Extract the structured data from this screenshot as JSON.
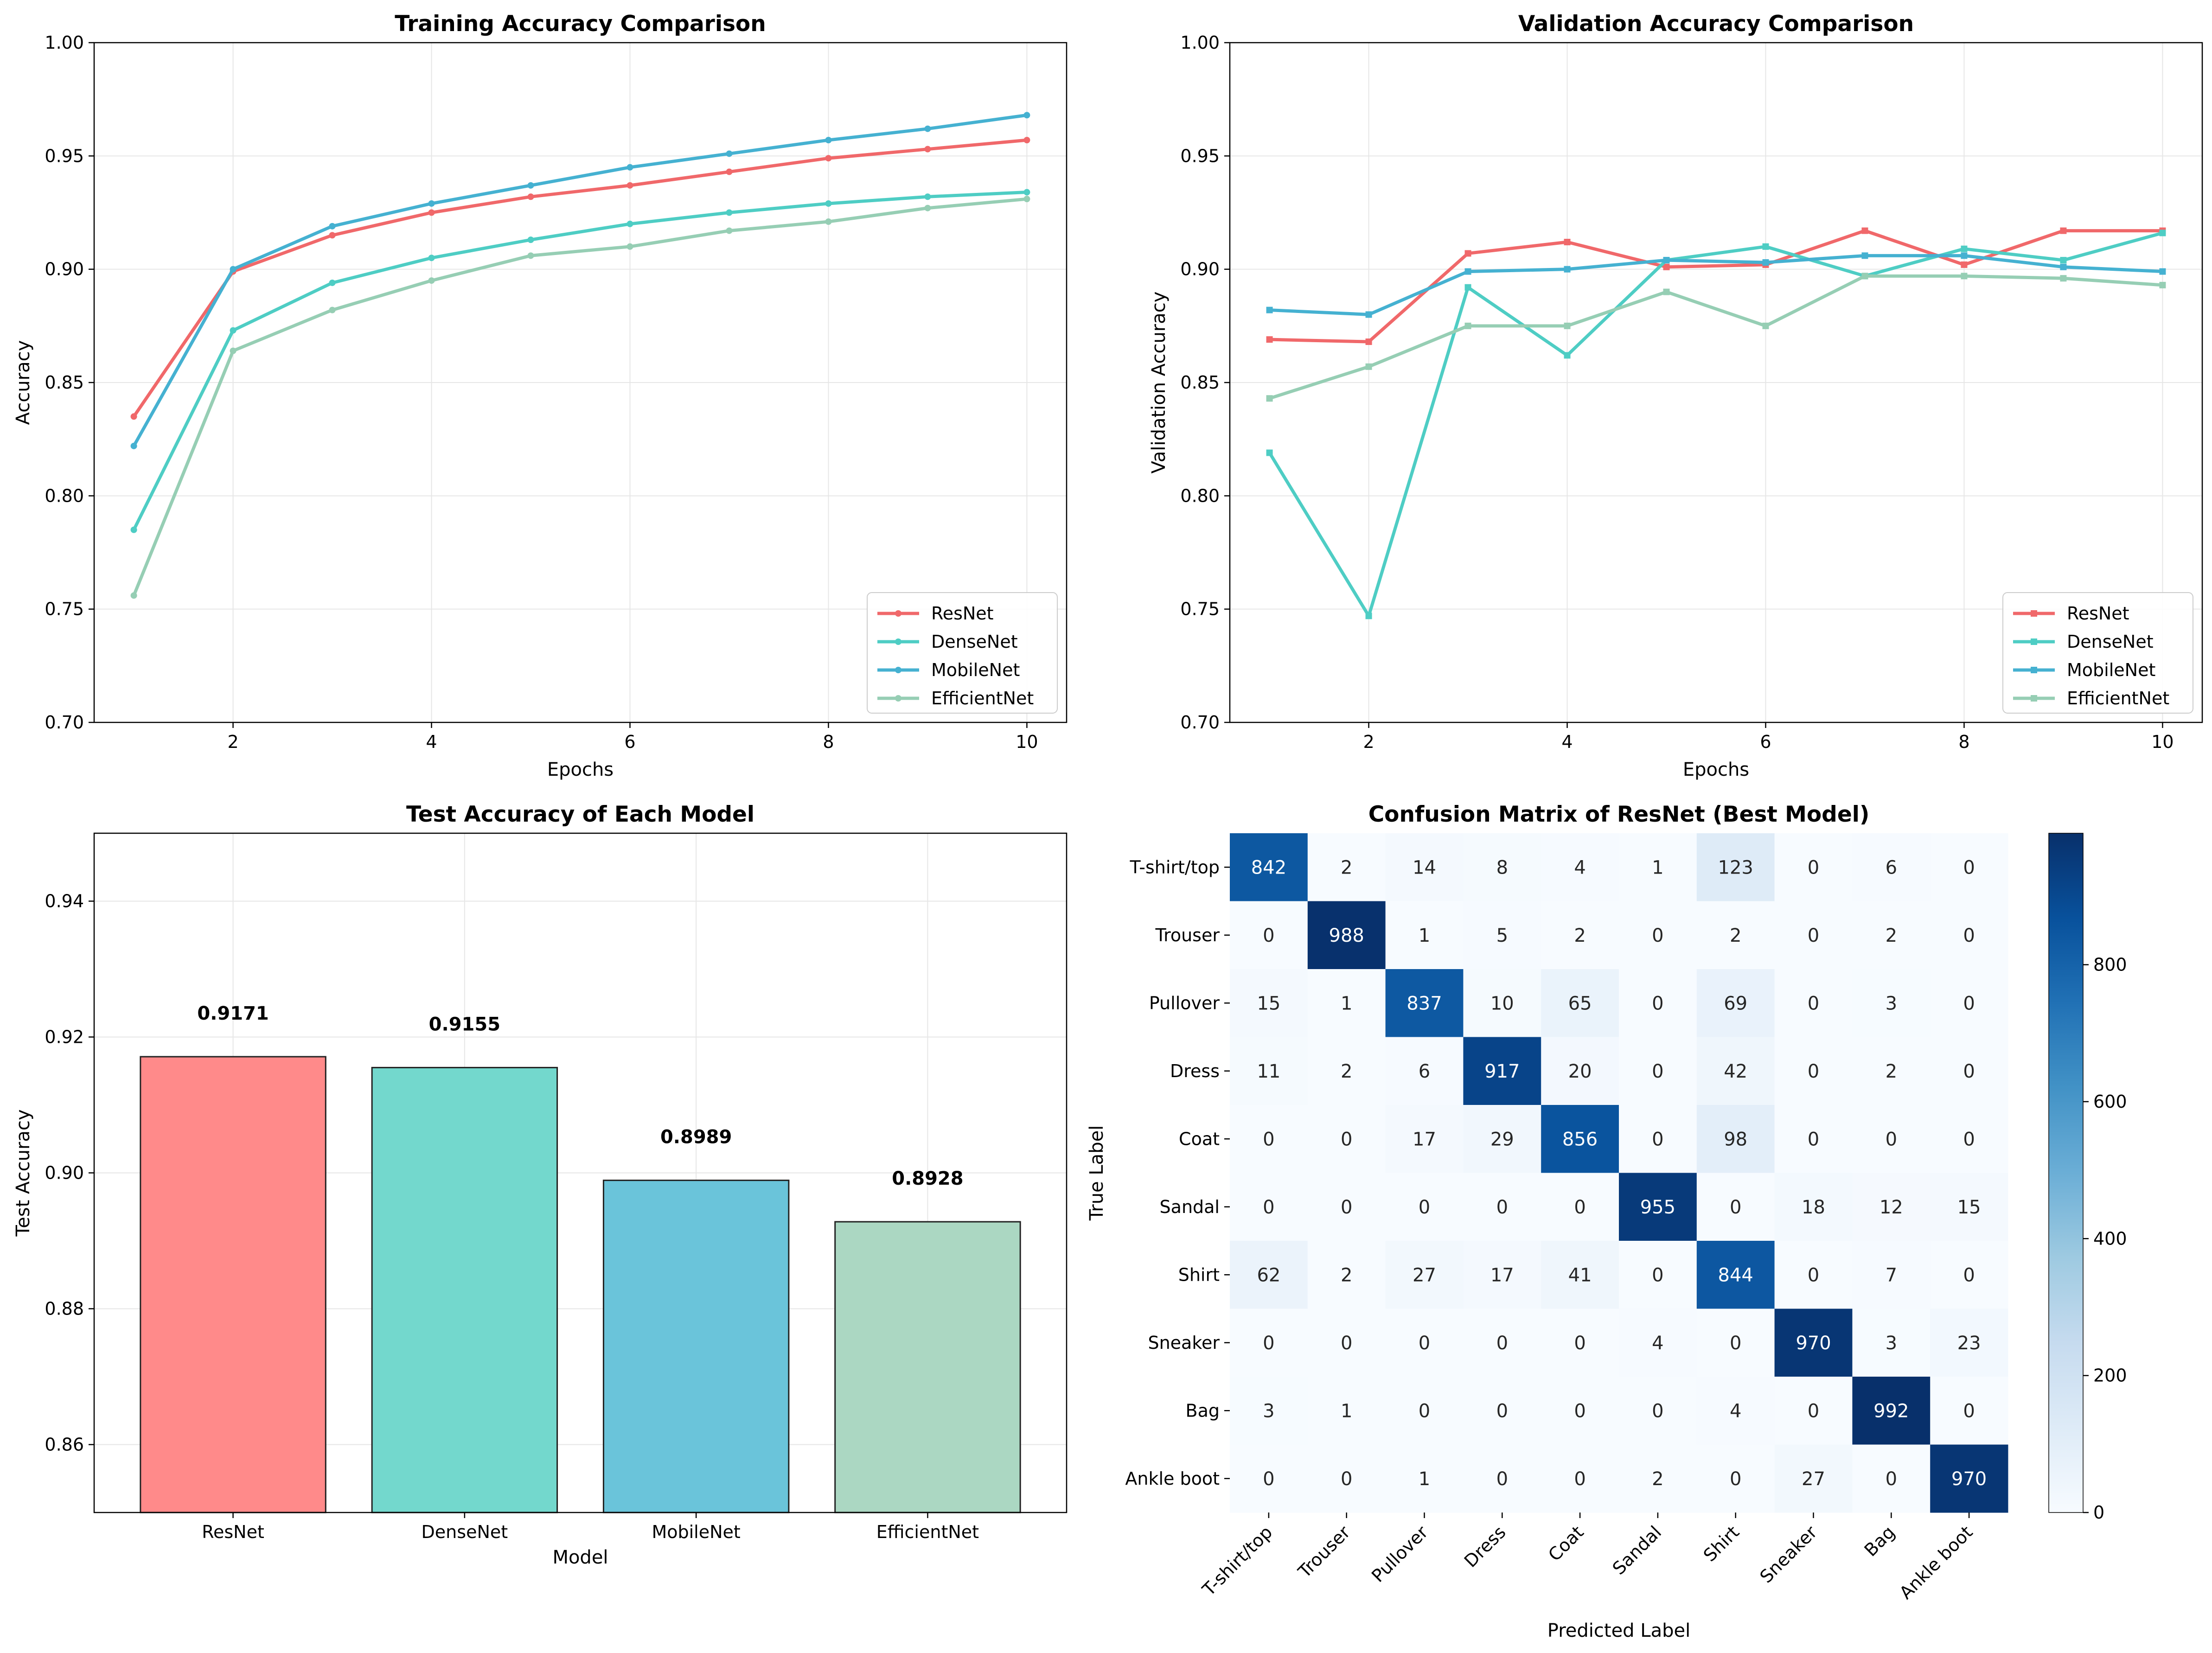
{
  "colors": {
    "ResNet": "#f0686a",
    "DenseNet": "#4ecdc4",
    "MobileNet": "#45b1d1",
    "EfficientNet": "#96ceb4",
    "bars": [
      "#ff8a8a",
      "#73d8cd",
      "#6ac4da",
      "#abd7c2"
    ],
    "grid": "#e6e6e6"
  },
  "chart_data": [
    {
      "id": "train",
      "type": "line",
      "title": "Training Accuracy Comparison",
      "xlabel": "Epochs",
      "ylabel": "Accuracy",
      "xlim": [
        0.6,
        10.4
      ],
      "ylim": [
        0.7,
        1.0
      ],
      "xticks": [
        2,
        4,
        6,
        8,
        10
      ],
      "yticks": [
        0.7,
        0.75,
        0.8,
        0.85,
        0.9,
        0.95,
        1.0
      ],
      "ytick_labels": [
        "0.70",
        "0.75",
        "0.80",
        "0.85",
        "0.90",
        "0.95",
        "1.00"
      ],
      "grid": true,
      "legend": "lower-right",
      "x": [
        1,
        2,
        3,
        4,
        5,
        6,
        7,
        8,
        9,
        10
      ],
      "series": [
        {
          "name": "ResNet",
          "values": [
            0.835,
            0.899,
            0.915,
            0.925,
            0.932,
            0.937,
            0.943,
            0.949,
            0.953,
            0.957
          ]
        },
        {
          "name": "DenseNet",
          "values": [
            0.785,
            0.873,
            0.894,
            0.905,
            0.913,
            0.92,
            0.925,
            0.929,
            0.932,
            0.934
          ]
        },
        {
          "name": "MobileNet",
          "values": [
            0.822,
            0.9,
            0.919,
            0.929,
            0.937,
            0.945,
            0.951,
            0.957,
            0.962,
            0.968
          ]
        },
        {
          "name": "EfficientNet",
          "values": [
            0.756,
            0.864,
            0.882,
            0.895,
            0.906,
            0.91,
            0.917,
            0.921,
            0.927,
            0.931
          ]
        }
      ]
    },
    {
      "id": "val",
      "type": "line",
      "title": "Validation Accuracy Comparison",
      "xlabel": "Epochs",
      "ylabel": "Validation Accuracy",
      "xlim": [
        0.6,
        10.4
      ],
      "ylim": [
        0.7,
        1.0
      ],
      "xticks": [
        2,
        4,
        6,
        8,
        10
      ],
      "yticks": [
        0.7,
        0.75,
        0.8,
        0.85,
        0.9,
        0.95,
        1.0
      ],
      "ytick_labels": [
        "0.70",
        "0.75",
        "0.80",
        "0.85",
        "0.90",
        "0.95",
        "1.00"
      ],
      "grid": true,
      "legend": "lower-right",
      "x": [
        1,
        2,
        3,
        4,
        5,
        6,
        7,
        8,
        9,
        10
      ],
      "series": [
        {
          "name": "ResNet",
          "values": [
            0.869,
            0.868,
            0.907,
            0.912,
            0.901,
            0.902,
            0.917,
            0.902,
            0.917,
            0.917
          ]
        },
        {
          "name": "DenseNet",
          "values": [
            0.819,
            0.747,
            0.892,
            0.862,
            0.904,
            0.91,
            0.897,
            0.909,
            0.904,
            0.916
          ]
        },
        {
          "name": "MobileNet",
          "values": [
            0.882,
            0.88,
            0.899,
            0.9,
            0.904,
            0.903,
            0.906,
            0.906,
            0.901,
            0.899
          ]
        },
        {
          "name": "EfficientNet",
          "values": [
            0.843,
            0.857,
            0.875,
            0.875,
            0.89,
            0.875,
            0.897,
            0.897,
            0.896,
            0.893
          ]
        }
      ]
    },
    {
      "id": "test",
      "type": "bar",
      "title": "Test Accuracy of Each Model",
      "xlabel": "Model",
      "ylabel": "Test Accuracy",
      "ylim": [
        0.85,
        0.95
      ],
      "yticks": [
        0.86,
        0.88,
        0.9,
        0.92,
        0.94
      ],
      "ytick_labels": [
        "0.86",
        "0.88",
        "0.90",
        "0.92",
        "0.94"
      ],
      "grid": true,
      "categories": [
        "ResNet",
        "DenseNet",
        "MobileNet",
        "EfficientNet"
      ],
      "values": [
        0.9171,
        0.9155,
        0.8989,
        0.8928
      ],
      "value_labels": [
        "0.9171",
        "0.9155",
        "0.8989",
        "0.8928"
      ]
    },
    {
      "id": "cm",
      "type": "heatmap",
      "title": "Confusion Matrix of ResNet (Best Model)",
      "xlabel": "Predicted Label",
      "ylabel": "True Label",
      "labels": [
        "T-shirt/top",
        "Trouser",
        "Pullover",
        "Dress",
        "Coat",
        "Sandal",
        "Shirt",
        "Sneaker",
        "Bag",
        "Ankle boot"
      ],
      "colorbar_range": [
        0,
        992
      ],
      "colorbar_ticks": [
        0,
        200,
        400,
        600,
        800
      ],
      "colorbar_tick_labels": [
        "0",
        "200",
        "400",
        "600",
        "800"
      ],
      "matrix": [
        [
          842,
          2,
          14,
          8,
          4,
          1,
          123,
          0,
          6,
          0
        ],
        [
          0,
          988,
          1,
          5,
          2,
          0,
          2,
          0,
          2,
          0
        ],
        [
          15,
          1,
          837,
          10,
          65,
          0,
          69,
          0,
          3,
          0
        ],
        [
          11,
          2,
          6,
          917,
          20,
          0,
          42,
          0,
          2,
          0
        ],
        [
          0,
          0,
          17,
          29,
          856,
          0,
          98,
          0,
          0,
          0
        ],
        [
          0,
          0,
          0,
          0,
          0,
          955,
          0,
          18,
          12,
          15
        ],
        [
          62,
          2,
          27,
          17,
          41,
          0,
          844,
          0,
          7,
          0
        ],
        [
          0,
          0,
          0,
          0,
          0,
          4,
          0,
          970,
          3,
          23
        ],
        [
          3,
          1,
          0,
          0,
          0,
          0,
          4,
          0,
          992,
          0
        ],
        [
          0,
          0,
          1,
          0,
          0,
          2,
          0,
          27,
          0,
          970
        ]
      ]
    }
  ]
}
